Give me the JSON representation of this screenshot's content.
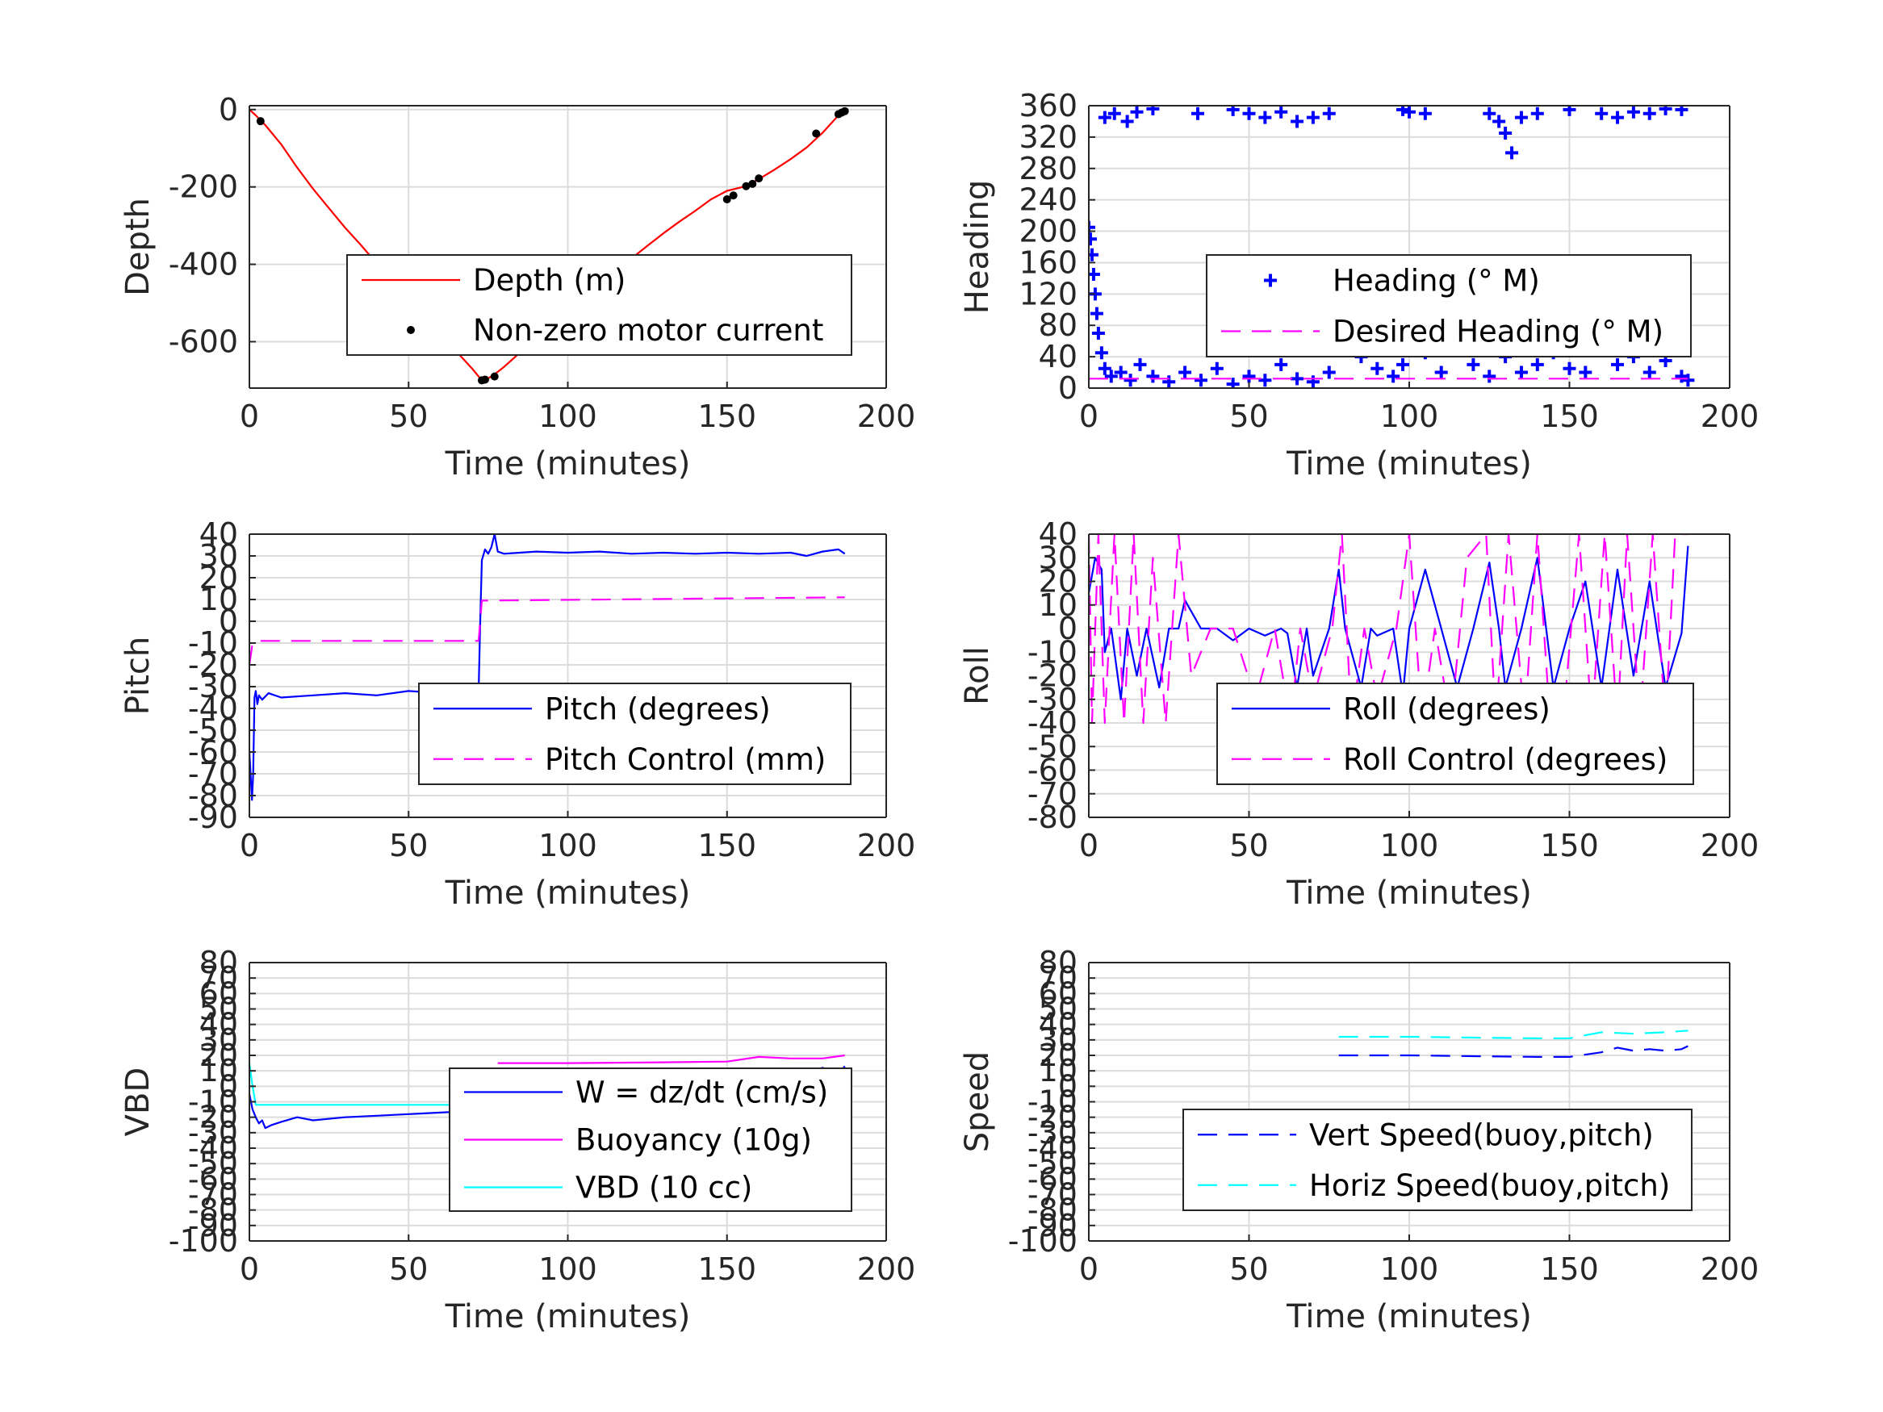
{
  "chart_data": [
    {
      "type": "line",
      "xlabel": "Time (minutes)",
      "ylabel": "Depth",
      "xlim": [
        0,
        200
      ],
      "ylim": [
        -720,
        10
      ],
      "xticks": [
        "0",
        "50",
        "100",
        "150",
        "200"
      ],
      "yticks": [
        "0",
        "-200",
        "-400",
        "-600"
      ],
      "grid": true,
      "legend_position": "center-right",
      "series": [
        {
          "name": "Depth (m)",
          "style": "line",
          "color": "#ff0000",
          "x": [
            0,
            2,
            5,
            10,
            15,
            20,
            25,
            30,
            35,
            40,
            45,
            50,
            55,
            60,
            65,
            70,
            73,
            75,
            78,
            80,
            85,
            90,
            95,
            100,
            105,
            110,
            115,
            120,
            125,
            130,
            135,
            140,
            145,
            150,
            155,
            160,
            165,
            170,
            175,
            180,
            185,
            187
          ],
          "y": [
            0,
            -15,
            -40,
            -90,
            -150,
            -205,
            -255,
            -305,
            -350,
            -398,
            -445,
            -490,
            -535,
            -580,
            -625,
            -670,
            -700,
            -695,
            -678,
            -665,
            -628,
            -592,
            -555,
            -518,
            -485,
            -450,
            -418,
            -385,
            -352,
            -320,
            -290,
            -262,
            -232,
            -210,
            -200,
            -180,
            -155,
            -128,
            -98,
            -60,
            -15,
            -5
          ]
        },
        {
          "name": "Non-zero motor current",
          "style": "dots",
          "color": "#000000",
          "x": [
            3.5,
            73,
            74,
            77,
            150,
            152,
            156,
            158,
            160,
            178,
            185,
            186,
            187
          ],
          "y": [
            -30,
            -700,
            -698,
            -690,
            -232,
            -222,
            -198,
            -192,
            -178,
            -62,
            -12,
            -8,
            -4
          ]
        }
      ]
    },
    {
      "type": "scatter",
      "xlabel": "Time (minutes)",
      "ylabel": "Heading",
      "xlim": [
        0,
        200
      ],
      "ylim": [
        0,
        360
      ],
      "xticks": [
        "0",
        "50",
        "100",
        "150",
        "200"
      ],
      "yticks": [
        "0",
        "40",
        "80",
        "120",
        "160",
        "200",
        "240",
        "280",
        "320",
        "360"
      ],
      "grid": true,
      "legend_position": "center-right",
      "series": [
        {
          "name": "Heading (° M)",
          "style": "plus",
          "color": "#0000ff",
          "x": [
            0,
            0.5,
            1,
            1.5,
            2,
            2.5,
            3,
            4,
            5,
            7,
            10,
            13,
            16,
            20,
            25,
            30,
            35,
            40,
            45,
            50,
            55,
            60,
            65,
            70,
            75,
            78,
            80,
            85,
            90,
            95,
            98,
            100,
            105,
            110,
            115,
            120,
            125,
            130,
            135,
            140,
            145,
            150,
            155,
            160,
            163,
            165,
            170,
            175,
            180,
            185,
            187,
            5,
            8,
            12,
            15,
            20,
            34,
            45,
            50,
            55,
            60,
            65,
            70,
            75,
            98,
            100,
            105,
            125,
            128,
            130,
            132,
            135,
            140,
            150,
            160,
            165,
            170,
            175,
            180,
            185
          ],
          "y": [
            205,
            190,
            170,
            145,
            120,
            95,
            70,
            45,
            25,
            15,
            20,
            10,
            30,
            15,
            8,
            20,
            10,
            25,
            5,
            15,
            10,
            30,
            12,
            8,
            20,
            55,
            70,
            40,
            25,
            15,
            30,
            60,
            45,
            20,
            55,
            30,
            15,
            40,
            20,
            30,
            45,
            25,
            20,
            70,
            90,
            30,
            40,
            20,
            35,
            15,
            10,
            345,
            350,
            340,
            352,
            356,
            350,
            355,
            350,
            345,
            352,
            340,
            345,
            350,
            355,
            352,
            350,
            350,
            340,
            325,
            300,
            345,
            350,
            355,
            350,
            345,
            352,
            350,
            356,
            355
          ]
        },
        {
          "name": "Desired Heading (° M)",
          "style": "dashed",
          "color": "#ff00ff",
          "x": [
            0,
            187
          ],
          "y": [
            12,
            12
          ]
        }
      ]
    },
    {
      "type": "line",
      "xlabel": "Time (minutes)",
      "ylabel": "Pitch",
      "xlim": [
        0,
        200
      ],
      "ylim": [
        -90,
        40
      ],
      "xticks": [
        "0",
        "50",
        "100",
        "150",
        "200"
      ],
      "yticks": [
        "40",
        "30",
        "20",
        "10",
        "0",
        "-10",
        "-20",
        "-30",
        "-40",
        "-50",
        "-60",
        "-70",
        "-80",
        "-90"
      ],
      "grid": true,
      "legend_position": "center-right",
      "series": [
        {
          "name": "Pitch (degrees)",
          "style": "line",
          "color": "#0000ff",
          "x": [
            0,
            0.8,
            1.2,
            1.6,
            2,
            2.5,
            3,
            4,
            6,
            10,
            20,
            30,
            40,
            50,
            60,
            70,
            72,
            72.5,
            73,
            74,
            75,
            76,
            77,
            78,
            80,
            90,
            100,
            110,
            120,
            130,
            140,
            150,
            160,
            170,
            175,
            180,
            185,
            187
          ],
          "y": [
            -60,
            -82,
            -70,
            -35,
            -32,
            -38,
            -34,
            -36,
            -33,
            -35,
            -34,
            -33,
            -34,
            -32,
            -33,
            -32,
            -32,
            0,
            28,
            33,
            31,
            34,
            40,
            32,
            31,
            32,
            31.5,
            32,
            31,
            31.5,
            31,
            31.5,
            31,
            31.5,
            30,
            32,
            33,
            31
          ]
        },
        {
          "name": "Pitch Control (mm)",
          "style": "dashed",
          "color": "#ff00ff",
          "x": [
            0,
            1,
            2,
            72,
            73,
            187
          ],
          "y": [
            -20,
            -10,
            -9,
            -9,
            9.5,
            11
          ]
        }
      ]
    },
    {
      "type": "line",
      "xlabel": "Time (minutes)",
      "ylabel": "Roll",
      "xlim": [
        0,
        200
      ],
      "ylim": [
        -80,
        40
      ],
      "xticks": [
        "0",
        "50",
        "100",
        "150",
        "200"
      ],
      "yticks": [
        "40",
        "30",
        "20",
        "10",
        "0",
        "-10",
        "-20",
        "-30",
        "-40",
        "-50",
        "-60",
        "-70",
        "-80"
      ],
      "grid": true,
      "legend_position": "lower-right",
      "series": [
        {
          "name": "Roll (degrees)",
          "style": "line",
          "color": "#0000ff",
          "x": [
            0,
            2,
            4,
            5,
            7,
            10,
            12,
            15,
            18,
            22,
            25,
            28,
            30,
            35,
            40,
            45,
            50,
            55,
            60,
            62,
            65,
            68,
            70,
            75,
            78,
            80,
            85,
            88,
            90,
            95,
            98,
            100,
            105,
            110,
            115,
            120,
            125,
            128,
            130,
            135,
            140,
            145,
            150,
            155,
            160,
            165,
            170,
            175,
            180,
            185,
            187
          ],
          "y": [
            15,
            30,
            25,
            -10,
            0,
            -30,
            0,
            -20,
            0,
            -25,
            0,
            0,
            12,
            0,
            0,
            -5,
            0,
            -3,
            0,
            -2,
            -25,
            0,
            -20,
            0,
            25,
            0,
            -25,
            0,
            -3,
            0,
            -28,
            0,
            25,
            0,
            -25,
            0,
            28,
            0,
            -25,
            0,
            30,
            -25,
            0,
            20,
            -25,
            25,
            -20,
            20,
            -25,
            -2,
            35
          ]
        },
        {
          "name": "Roll Control (degrees)",
          "style": "dashed",
          "color": "#ff00ff",
          "x": [
            0,
            1,
            3,
            5,
            8,
            11,
            14,
            17,
            20,
            24,
            28,
            32,
            38,
            45,
            52,
            58,
            63,
            66,
            70,
            76,
            79,
            82,
            86,
            90,
            96,
            100,
            104,
            108,
            113,
            118,
            124,
            127,
            131,
            136,
            140,
            144,
            148,
            153,
            157,
            161,
            165,
            168,
            172,
            176,
            180,
            183,
            187
          ],
          "y": [
            40,
            -40,
            40,
            -40,
            40,
            -40,
            40,
            -40,
            30,
            -40,
            40,
            -20,
            0,
            0,
            -30,
            0,
            -40,
            0,
            -30,
            0,
            40,
            -40,
            0,
            -30,
            0,
            40,
            -40,
            0,
            -40,
            30,
            40,
            -40,
            40,
            -40,
            40,
            -40,
            -40,
            40,
            -40,
            40,
            -40,
            40,
            -40,
            40,
            -40,
            40,
            40
          ]
        }
      ]
    },
    {
      "type": "line",
      "xlabel": "Time (minutes)",
      "ylabel": "VBD",
      "xlim": [
        0,
        200
      ],
      "ylim": [
        -100,
        80
      ],
      "xticks": [
        "0",
        "50",
        "100",
        "150",
        "200"
      ],
      "yticks": [
        "80",
        "70",
        "60",
        "50",
        "40",
        "30",
        "20",
        "10",
        "0",
        "-10",
        "-20",
        "-30",
        "-40",
        "-50",
        "-60",
        "-70",
        "-80",
        "-90",
        "-100"
      ],
      "grid": true,
      "legend_position": "lower-right",
      "series": [
        {
          "name": "W = dz/dt (cm/s)",
          "style": "line",
          "color": "#0000ff",
          "x": [
            0,
            1,
            2,
            3,
            4,
            5,
            7,
            10,
            15,
            20,
            30,
            40,
            50,
            60,
            70,
            72,
            73,
            75,
            80,
            90,
            100,
            110,
            120,
            130,
            140,
            150,
            160,
            170,
            175,
            180,
            185,
            187
          ],
          "y": [
            -5,
            -15,
            -20,
            -24,
            -22,
            -27,
            -25,
            -23,
            -20,
            -22,
            -20,
            -19,
            -18,
            -17,
            -16,
            -15,
            -3,
            7,
            8,
            9,
            10,
            9,
            10,
            10,
            9,
            8,
            9,
            11,
            7,
            12,
            8,
            13
          ]
        },
        {
          "name": "Buoyancy (10g)",
          "style": "line",
          "color": "#ff00ff",
          "x": [
            78,
            100,
            130,
            150,
            160,
            170,
            180,
            187
          ],
          "y": [
            15,
            15,
            15.5,
            16,
            19,
            18,
            18,
            20
          ]
        },
        {
          "name": "VBD (10 cc)",
          "style": "line",
          "color": "#00ffff",
          "x": [
            0,
            1,
            2,
            3,
            72,
            73,
            75,
            100,
            150,
            187
          ],
          "y": [
            15,
            0,
            -12,
            -12,
            -12,
            0,
            9,
            9,
            9,
            10
          ]
        }
      ]
    },
    {
      "type": "line",
      "xlabel": "Time (minutes)",
      "ylabel": "Speed",
      "xlim": [
        0,
        200
      ],
      "ylim": [
        -100,
        80
      ],
      "xticks": [
        "0",
        "50",
        "100",
        "150",
        "200"
      ],
      "yticks": [
        "80",
        "70",
        "60",
        "50",
        "40",
        "30",
        "20",
        "10",
        "0",
        "-10",
        "-20",
        "-30",
        "-40",
        "-50",
        "-60",
        "-70",
        "-80",
        "-90",
        "-100"
      ],
      "grid": true,
      "legend_position": "lower-right",
      "series": [
        {
          "name": "Vert Speed(buoy,pitch)",
          "style": "dashed",
          "color": "#0000ff",
          "x": [
            78,
            100,
            120,
            140,
            150,
            160,
            165,
            170,
            175,
            180,
            185,
            187
          ],
          "y": [
            20,
            20,
            19.5,
            19,
            19,
            22,
            25,
            23,
            24,
            23,
            24,
            26
          ]
        },
        {
          "name": "Horiz Speed(buoy,pitch)",
          "style": "dashed",
          "color": "#00ffff",
          "x": [
            78,
            100,
            120,
            140,
            150,
            155,
            160,
            170,
            180,
            187
          ],
          "y": [
            32,
            32,
            31.5,
            31,
            31,
            33,
            35,
            34,
            35,
            36
          ]
        }
      ]
    }
  ]
}
